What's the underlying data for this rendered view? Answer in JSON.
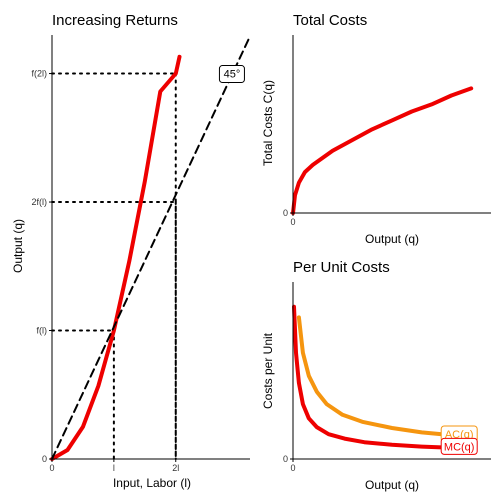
{
  "chart_data": [
    {
      "id": "increasing-returns",
      "type": "line",
      "title": "Increasing Returns",
      "xlabel": "Input, Labor (l)",
      "ylabel": "Output (q)",
      "x_ticks": [
        {
          "value": 0,
          "label": "0"
        },
        {
          "value": 1,
          "label": "l"
        },
        {
          "value": 2,
          "label": "2l"
        }
      ],
      "y_ticks": [
        {
          "value": 0,
          "label": "0"
        },
        {
          "value": 1,
          "label": "f(l)"
        },
        {
          "value": 2,
          "label": "2f(l)"
        },
        {
          "value": 3,
          "label": "f(2l)"
        }
      ],
      "xlim": [
        0,
        3.2
      ],
      "ylim": [
        0,
        3.3
      ],
      "series": [
        {
          "color": "#ee0000",
          "style": "solid",
          "x": [
            0,
            0.25,
            0.5,
            0.75,
            1.0,
            1.25,
            1.5,
            1.75,
            2.0,
            2.06
          ],
          "y": [
            0,
            0.07,
            0.25,
            0.57,
            1.0,
            1.54,
            2.16,
            2.86,
            3.0,
            3.13
          ]
        },
        {
          "color": "#000000",
          "style": "dashed",
          "x": [
            0,
            3.2
          ],
          "y": [
            0,
            3.29
          ]
        }
      ],
      "guides": [
        {
          "x": 1,
          "y": 1
        },
        {
          "x": 2,
          "y": 2
        },
        {
          "x": 2,
          "y": 3
        }
      ],
      "annotation": {
        "text": "45°",
        "x": 2.9,
        "y": 3.0
      }
    },
    {
      "id": "total-costs",
      "type": "line",
      "title": "Total Costs",
      "xlabel": "Output (q)",
      "ylabel": "Total Costs C(q)",
      "x_ticks": [
        {
          "value": 0,
          "label": "0"
        }
      ],
      "y_ticks": [
        {
          "value": 0,
          "label": "0"
        }
      ],
      "xlim": [
        0,
        10
      ],
      "ylim": [
        0,
        10
      ],
      "series": [
        {
          "color": "#ee0000",
          "style": "solid",
          "x": [
            0,
            0.1,
            0.3,
            0.6,
            1,
            2,
            3,
            4,
            5,
            6,
            7,
            8,
            9
          ],
          "y": [
            0,
            1.0,
            1.7,
            2.3,
            2.7,
            3.5,
            4.1,
            4.7,
            5.2,
            5.7,
            6.1,
            6.6,
            7.0
          ]
        }
      ]
    },
    {
      "id": "per-unit-costs",
      "type": "line",
      "title": "Per Unit Costs",
      "xlabel": "Output (q)",
      "ylabel": "Costs per Unit",
      "x_ticks": [
        {
          "value": 0,
          "label": "0"
        }
      ],
      "y_ticks": [
        {
          "value": 0,
          "label": "0"
        }
      ],
      "xlim": [
        0,
        10
      ],
      "ylim": [
        0,
        10
      ],
      "series": [
        {
          "name": "AC(q)",
          "color": "#f5950f",
          "style": "solid",
          "x": [
            0.3,
            0.5,
            0.8,
            1.2,
            1.7,
            2.5,
            3.5,
            5,
            6.5,
            8,
            9
          ],
          "y": [
            8.0,
            6.0,
            4.7,
            3.8,
            3.1,
            2.5,
            2.1,
            1.75,
            1.5,
            1.35,
            1.3
          ]
        },
        {
          "name": "MC(q)",
          "color": "#ee0000",
          "style": "solid",
          "x": [
            0.05,
            0.15,
            0.3,
            0.5,
            0.8,
            1.2,
            1.8,
            2.6,
            3.6,
            5,
            6.5,
            8,
            9
          ],
          "y": [
            8.6,
            6.0,
            4.3,
            3.1,
            2.3,
            1.8,
            1.4,
            1.15,
            0.95,
            0.8,
            0.7,
            0.63,
            0.6
          ]
        }
      ]
    }
  ]
}
